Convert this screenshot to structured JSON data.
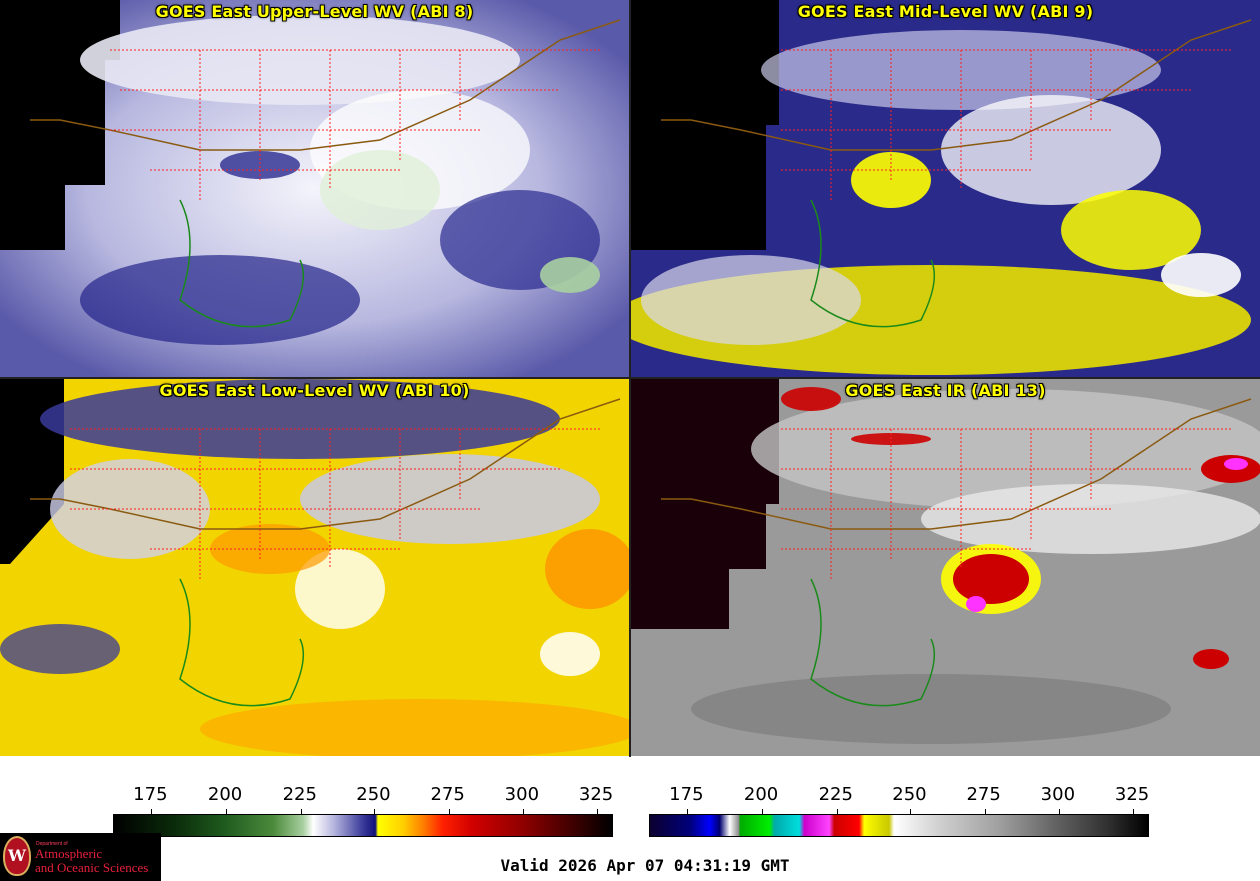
{
  "panels": [
    {
      "id": "p1",
      "title": "GOES East Upper-Level WV (ABI 8)",
      "style": "wv-upper"
    },
    {
      "id": "p2",
      "title": "GOES East Mid-Level WV (ABI 9)",
      "style": "wv-mid"
    },
    {
      "id": "p3",
      "title": "GOES East Low-Level WV (ABI 10)",
      "style": "wv-low"
    },
    {
      "id": "p4",
      "title": "GOES East IR (ABI 13)",
      "style": "ir"
    }
  ],
  "colorbar_left": {
    "ticks": [
      "175",
      "200",
      "225",
      "250",
      "275",
      "300",
      "325"
    ]
  },
  "colorbar_right": {
    "ticks": [
      "175",
      "200",
      "225",
      "250",
      "275",
      "300",
      "325"
    ]
  },
  "logo": {
    "seal_letter": "W",
    "department": "Department of",
    "line1": "Atmospheric",
    "line2": "and Oceanic Sciences"
  },
  "footer": {
    "valid_text": "Valid 2026 Apr 07 04:31:19 GMT"
  },
  "colors": {
    "title": "#ffff00",
    "state_lines": "#ff2020",
    "coastline": "#1a8a1a",
    "border": "#8a5a10"
  }
}
